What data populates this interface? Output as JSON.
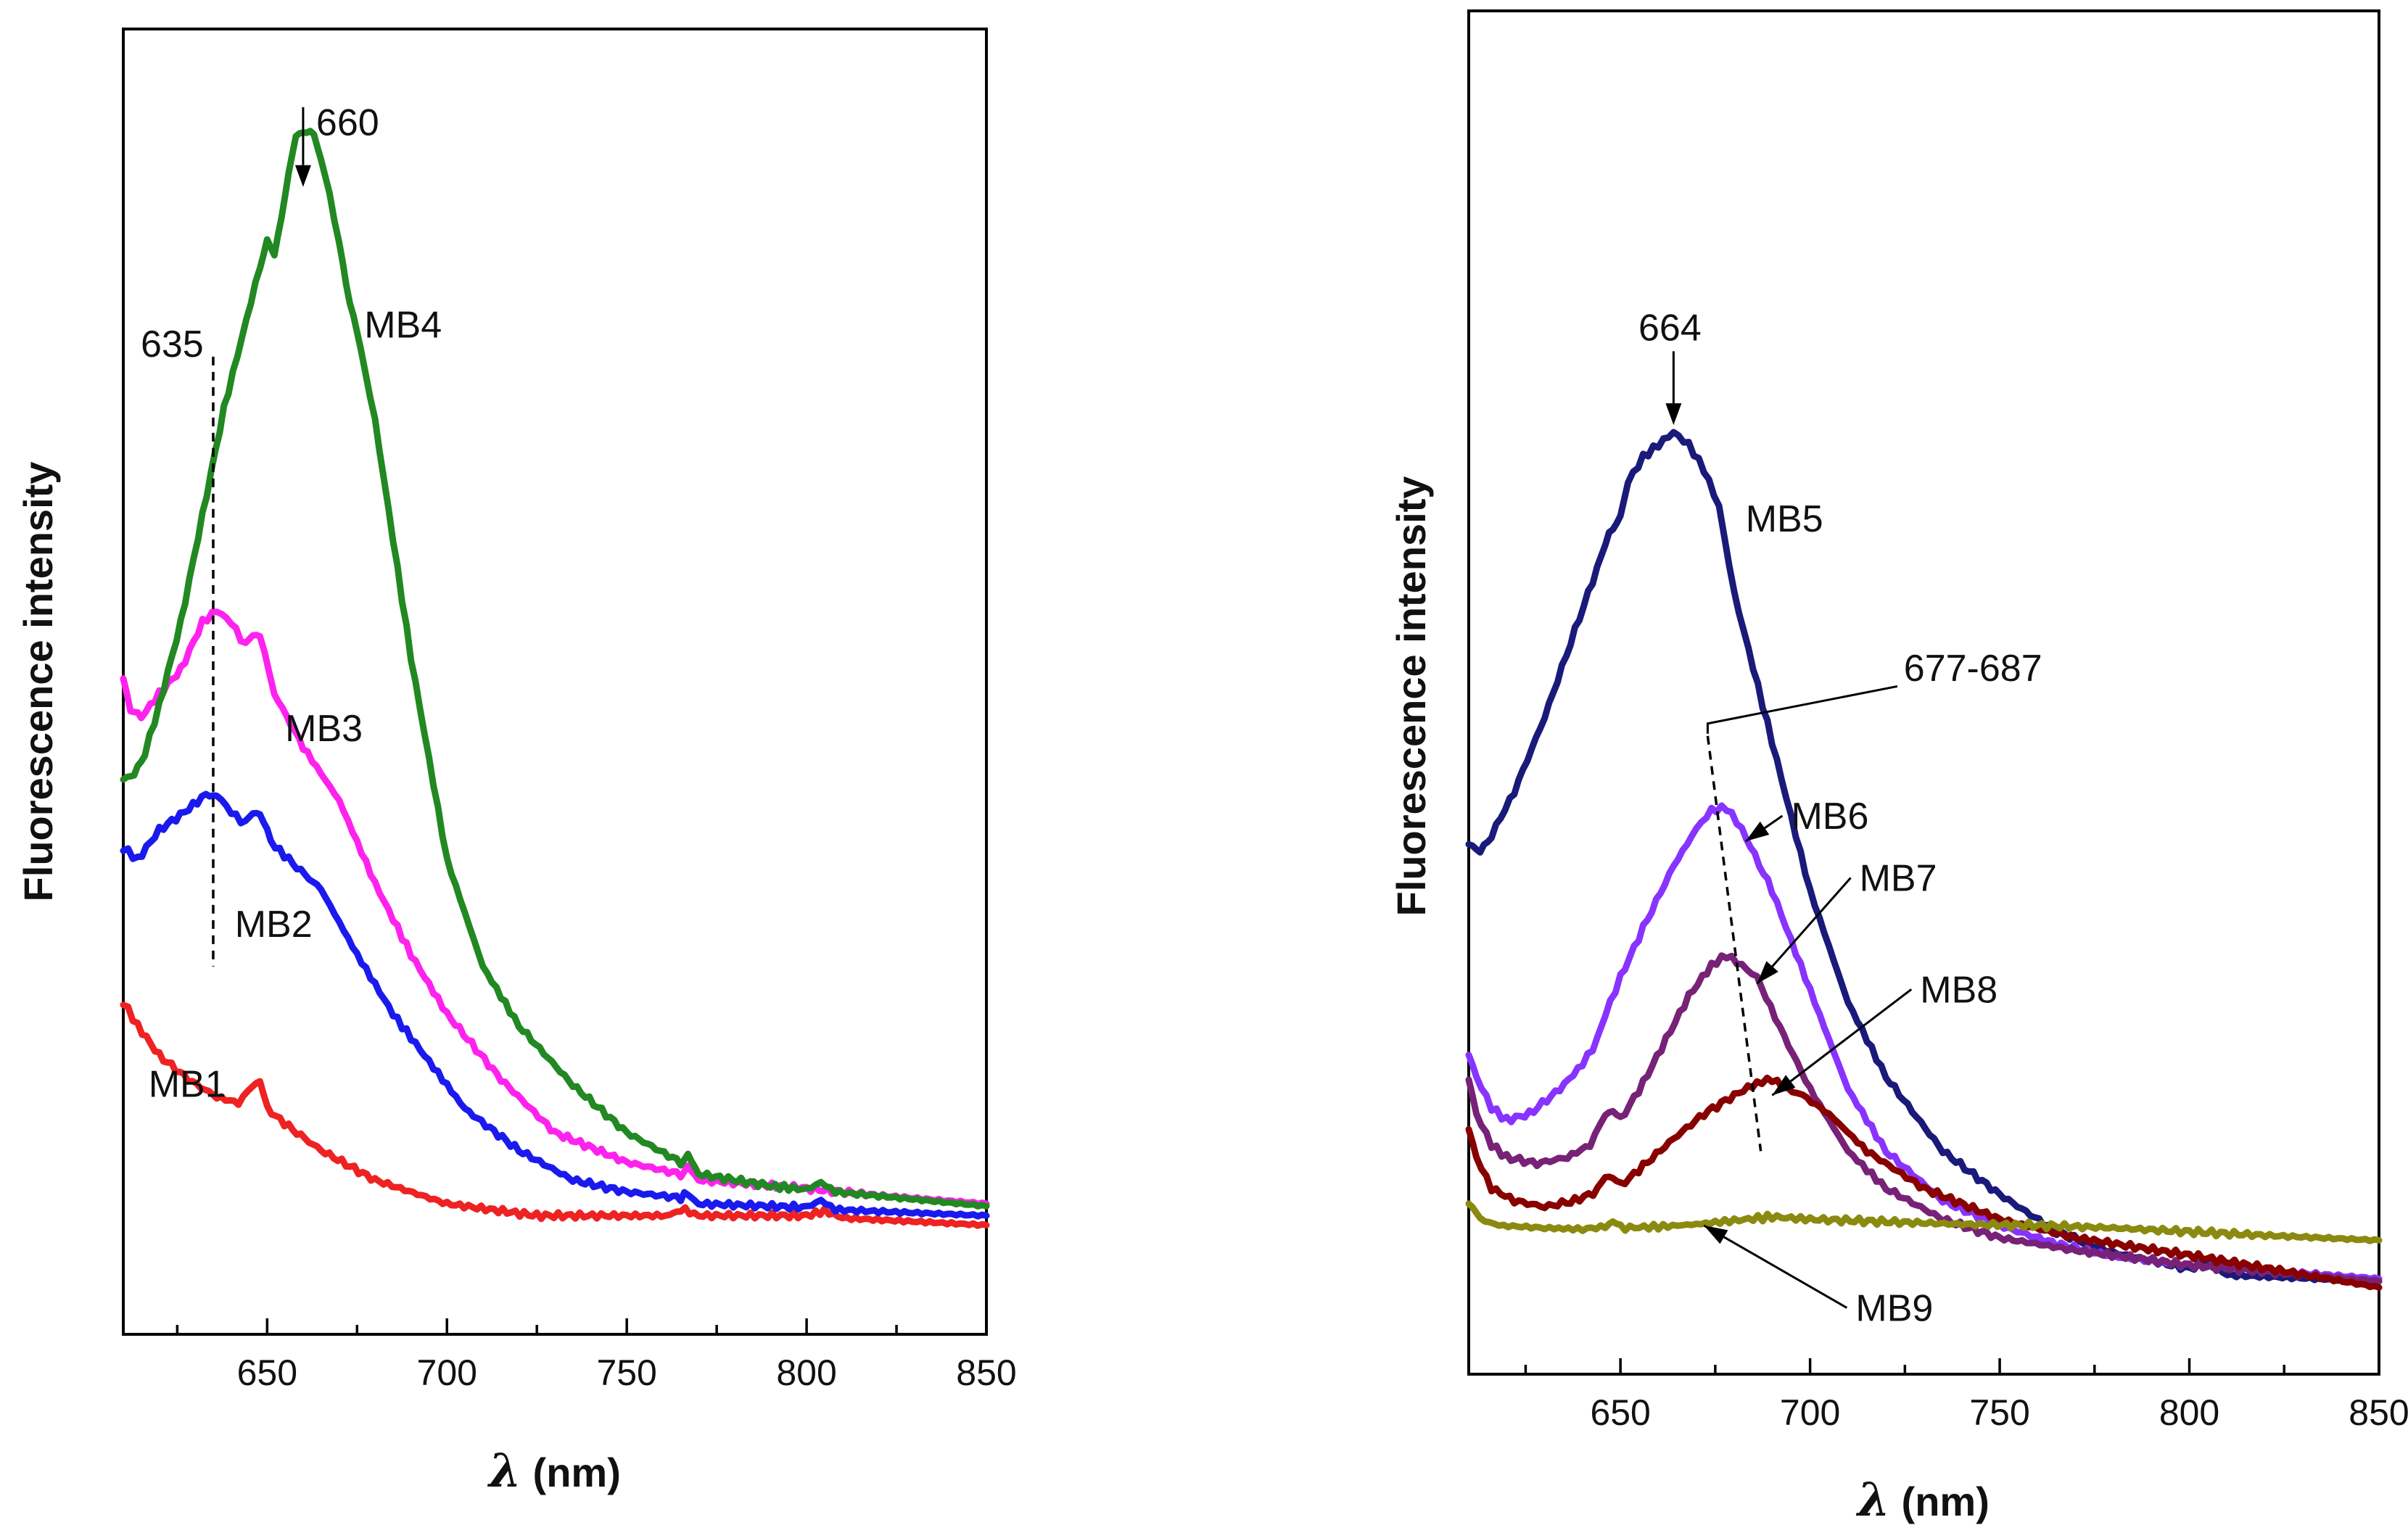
{
  "chart_data": [
    {
      "type": "line",
      "xlabel_symbol": "λ",
      "xlabel_unit": " (nm)",
      "ylabel": "Fluorescence intensity",
      "xlim": [
        610,
        850
      ],
      "ylim": [
        0,
        110
      ],
      "x_ticks": [
        650,
        700,
        750,
        800,
        850
      ],
      "grid": false,
      "annotations": [
        {
          "text": "660",
          "x": 660,
          "y": 102.5
        },
        {
          "text": "635",
          "x": 635,
          "y": 83
        }
      ],
      "series": [
        {
          "name": "MB1",
          "color": "#ee2222",
          "points": [
            [
              610,
              28
            ],
            [
              614,
              26
            ],
            [
              620,
              23.5
            ],
            [
              628,
              21.5
            ],
            [
              636,
              20
            ],
            [
              642,
              19.5
            ],
            [
              646,
              21
            ],
            [
              648,
              21.5
            ],
            [
              650,
              19
            ],
            [
              656,
              17.5
            ],
            [
              665,
              15.5
            ],
            [
              680,
              13
            ],
            [
              700,
              11
            ],
            [
              725,
              10
            ],
            [
              750,
              10
            ],
            [
              762,
              10
            ],
            [
              765,
              10.6
            ],
            [
              770,
              10
            ],
            [
              800,
              10
            ],
            [
              805,
              10.4
            ],
            [
              810,
              9.8
            ],
            [
              850,
              9.2
            ]
          ]
        },
        {
          "name": "MB2",
          "color": "#1a1aee",
          "points": [
            [
              610,
              41
            ],
            [
              614,
              40
            ],
            [
              620,
              42.5
            ],
            [
              627,
              44
            ],
            [
              633,
              45.5
            ],
            [
              636,
              45.5
            ],
            [
              640,
              44
            ],
            [
              644,
              43
            ],
            [
              646,
              44
            ],
            [
              648,
              44
            ],
            [
              651,
              41.5
            ],
            [
              656,
              40
            ],
            [
              665,
              37.5
            ],
            [
              675,
              32
            ],
            [
              685,
              27
            ],
            [
              695,
              23
            ],
            [
              705,
              19
            ],
            [
              720,
              15.5
            ],
            [
              735,
              13
            ],
            [
              750,
              12
            ],
            [
              765,
              11.5
            ],
            [
              766,
              12
            ],
            [
              770,
              11
            ],
            [
              800,
              10.7
            ],
            [
              804,
              11.3
            ],
            [
              808,
              10.5
            ],
            [
              850,
              10
            ]
          ]
        },
        {
          "name": "MB3",
          "color": "#ff22ee",
          "points": [
            [
              610,
              55.5
            ],
            [
              612,
              52.5
            ],
            [
              615,
              52
            ],
            [
              620,
              54
            ],
            [
              626,
              56
            ],
            [
              632,
              60
            ],
            [
              636,
              61
            ],
            [
              640,
              60
            ],
            [
              644,
              58
            ],
            [
              646,
              59
            ],
            [
              648,
              59
            ],
            [
              652,
              54
            ],
            [
              660,
              49.5
            ],
            [
              670,
              45
            ],
            [
              680,
              38
            ],
            [
              690,
              32
            ],
            [
              700,
              27
            ],
            [
              715,
              21.5
            ],
            [
              730,
              17
            ],
            [
              750,
              14.5
            ],
            [
              765,
              13.5
            ],
            [
              767,
              14
            ],
            [
              770,
              13
            ],
            [
              800,
              12.3
            ],
            [
              820,
              11.7
            ],
            [
              850,
              11
            ]
          ]
        },
        {
          "name": "MB4",
          "color": "#228822",
          "points": [
            [
              610,
              47
            ],
            [
              613,
              47
            ],
            [
              616,
              49
            ],
            [
              620,
              53
            ],
            [
              626,
              60
            ],
            [
              632,
              69
            ],
            [
              638,
              78
            ],
            [
              643,
              84
            ],
            [
              648,
              90
            ],
            [
              650,
              92
            ],
            [
              652,
              91
            ],
            [
              655,
              96
            ],
            [
              658,
              101
            ],
            [
              660,
              101.5
            ],
            [
              663,
              101
            ],
            [
              666,
              98
            ],
            [
              670,
              92
            ],
            [
              673,
              87
            ],
            [
              676,
              83
            ],
            [
              680,
              77
            ],
            [
              690,
              57
            ],
            [
              700,
              40
            ],
            [
              710,
              31
            ],
            [
              720,
              26
            ],
            [
              735,
              21
            ],
            [
              750,
              17
            ],
            [
              765,
              14.5
            ],
            [
              767,
              15
            ],
            [
              770,
              13.5
            ],
            [
              790,
              12.5
            ],
            [
              800,
              12.2
            ],
            [
              804,
              12.8
            ],
            [
              808,
              12
            ],
            [
              850,
              10.8
            ]
          ]
        }
      ],
      "labels": [
        {
          "text": "MB1",
          "x": 617,
          "y": 20
        },
        {
          "text": "MB2",
          "x": 641,
          "y": 33.5
        },
        {
          "text": "MB3",
          "x": 655,
          "y": 50
        },
        {
          "text": "MB4",
          "x": 677,
          "y": 84
        }
      ]
    },
    {
      "type": "line",
      "xlabel_symbol": "λ",
      "xlabel_unit": " (nm)",
      "ylabel": "Fluorescence intensity",
      "xlim": [
        610,
        850
      ],
      "ylim": [
        0,
        110
      ],
      "x_ticks": [
        650,
        700,
        750,
        800,
        850
      ],
      "grid": false,
      "annotations": [
        {
          "text": "664",
          "x": 664,
          "y": 84
        },
        {
          "text": "677-687",
          "x": 740,
          "y": 57
        }
      ],
      "series": [
        {
          "name": "MB5",
          "color": "#1a1a7a",
          "points": [
            [
              610,
              43
            ],
            [
              613,
              42
            ],
            [
              616,
              43.5
            ],
            [
              622,
              47
            ],
            [
              630,
              53
            ],
            [
              638,
              60
            ],
            [
              645,
              66
            ],
            [
              647,
              68
            ],
            [
              650,
              69
            ],
            [
              652,
              72
            ],
            [
              656,
              74
            ],
            [
              660,
              75
            ],
            [
              664,
              76
            ],
            [
              668,
              75
            ],
            [
              672,
              73
            ],
            [
              676,
              70
            ],
            [
              680,
              63
            ],
            [
              690,
              51
            ],
            [
              700,
              39
            ],
            [
              710,
              30
            ],
            [
              720,
              24
            ],
            [
              735,
              18
            ],
            [
              750,
              14.5
            ],
            [
              765,
              11.5
            ],
            [
              780,
              9.8
            ],
            [
              800,
              8.5
            ],
            [
              805,
              9
            ],
            [
              810,
              8
            ],
            [
              850,
              7.5
            ]
          ]
        },
        {
          "name": "MB6",
          "color": "#8833ff",
          "points": [
            [
              610,
              26
            ],
            [
              612,
              24
            ],
            [
              616,
              21.5
            ],
            [
              620,
              20.5
            ],
            [
              626,
              21
            ],
            [
              634,
              23
            ],
            [
              640,
              25
            ],
            [
              644,
              27
            ],
            [
              646,
              29
            ],
            [
              650,
              32
            ],
            [
              656,
              36
            ],
            [
              664,
              41
            ],
            [
              670,
              44
            ],
            [
              674,
              45.5
            ],
            [
              678,
              45.7
            ],
            [
              682,
              44
            ],
            [
              690,
              39
            ],
            [
              700,
              31
            ],
            [
              710,
              23
            ],
            [
              720,
              18
            ],
            [
              735,
              14
            ],
            [
              750,
              12
            ],
            [
              765,
              10.5
            ],
            [
              780,
              9.5
            ],
            [
              800,
              8.8
            ],
            [
              850,
              7.7
            ]
          ]
        },
        {
          "name": "MB7",
          "color": "#772277",
          "points": [
            [
              610,
              24
            ],
            [
              612,
              21
            ],
            [
              616,
              18.5
            ],
            [
              620,
              17.5
            ],
            [
              628,
              17
            ],
            [
              636,
              17.5
            ],
            [
              642,
              18.5
            ],
            [
              646,
              21
            ],
            [
              648,
              21.4
            ],
            [
              650,
              20.5
            ],
            [
              656,
              23.5
            ],
            [
              662,
              27
            ],
            [
              668,
              30.5
            ],
            [
              674,
              33
            ],
            [
              678,
              33.8
            ],
            [
              682,
              33
            ],
            [
              686,
              32
            ],
            [
              692,
              28
            ],
            [
              700,
              23
            ],
            [
              710,
              18
            ],
            [
              720,
              15
            ],
            [
              735,
              12.5
            ],
            [
              750,
              11
            ],
            [
              770,
              10
            ],
            [
              800,
              8.8
            ],
            [
              850,
              7.5
            ]
          ]
        },
        {
          "name": "MB8",
          "color": "#880000",
          "points": [
            [
              610,
              20
            ],
            [
              612,
              17.5
            ],
            [
              616,
              15
            ],
            [
              622,
              14
            ],
            [
              630,
              13.5
            ],
            [
              638,
              14
            ],
            [
              644,
              14.8
            ],
            [
              646,
              16
            ],
            [
              648,
              16
            ],
            [
              650,
              15.2
            ],
            [
              656,
              16.8
            ],
            [
              664,
              19
            ],
            [
              672,
              21
            ],
            [
              680,
              22.5
            ],
            [
              686,
              23.5
            ],
            [
              690,
              23.8
            ],
            [
              694,
              23
            ],
            [
              698,
              22.5
            ],
            [
              705,
              21
            ],
            [
              715,
              18
            ],
            [
              730,
              15
            ],
            [
              750,
              12.5
            ],
            [
              770,
              11
            ],
            [
              800,
              9.6
            ],
            [
              850,
              7
            ]
          ]
        },
        {
          "name": "MB9",
          "color": "#8a8a10",
          "points": [
            [
              610,
              14
            ],
            [
              613,
              12.5
            ],
            [
              618,
              12
            ],
            [
              630,
              11.8
            ],
            [
              640,
              11.7
            ],
            [
              646,
              11.9
            ],
            [
              648,
              12.5
            ],
            [
              650,
              11.8
            ],
            [
              660,
              11.9
            ],
            [
              670,
              12.1
            ],
            [
              680,
              12.4
            ],
            [
              690,
              12.7
            ],
            [
              700,
              12.5
            ],
            [
              720,
              12.3
            ],
            [
              740,
              12.1
            ],
            [
              760,
              12
            ],
            [
              780,
              11.8
            ],
            [
              800,
              11.5
            ],
            [
              820,
              11.2
            ],
            [
              850,
              10.8
            ]
          ]
        }
      ],
      "labels": [
        {
          "text": "MB5",
          "x": 683,
          "y": 68
        },
        {
          "text": "MB6",
          "x": 695,
          "y": 44
        },
        {
          "text": "MB7",
          "x": 713,
          "y": 39
        },
        {
          "text": "MB8",
          "x": 729,
          "y": 30
        },
        {
          "text": "MB9",
          "x": 712,
          "y": 4.3
        }
      ],
      "pointers": [
        {
          "label": "MB6",
          "x": 683,
          "y": 43
        },
        {
          "label": "MB7",
          "x": 686,
          "y": 31.5
        },
        {
          "label": "MB8",
          "x": 690,
          "y": 22.5
        },
        {
          "label": "MB9",
          "x": 672,
          "y": 12
        }
      ]
    }
  ]
}
